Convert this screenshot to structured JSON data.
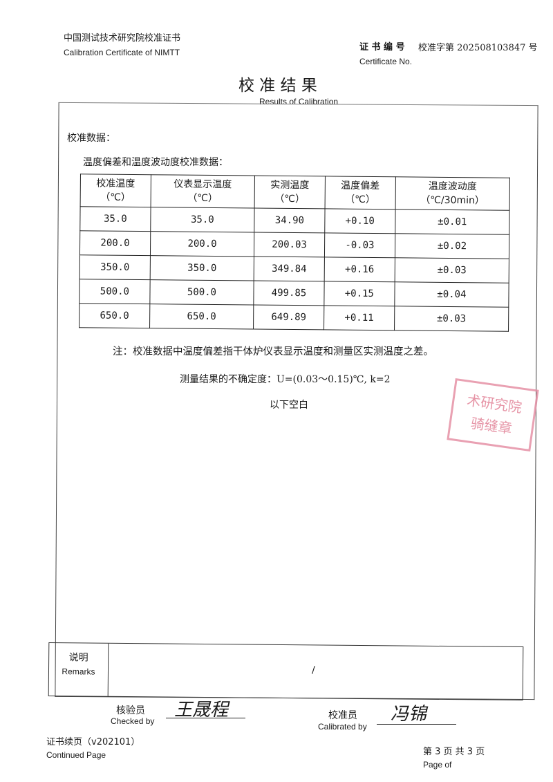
{
  "header": {
    "institute_cn": "中国测试技术研究院校准证书",
    "institute_en": "Calibration Certificate of NIMTT",
    "cert_no_label_cn": "证 书 编 号",
    "cert_no_value": "校准字第 202508103847 号",
    "cert_no_label_en": "Certificate No."
  },
  "title": {
    "cn": "校 准 结 果",
    "en": "Results of Calibration"
  },
  "section": {
    "label": "校准数据：",
    "subtitle": "温度偏差和温度波动度校准数据："
  },
  "table": {
    "columns": [
      {
        "name": "校准温度",
        "unit": "（℃）"
      },
      {
        "name": "仪表显示温度",
        "unit": "（℃）"
      },
      {
        "name": "实测温度",
        "unit": "（℃）"
      },
      {
        "name": "温度偏差",
        "unit": "（℃）"
      },
      {
        "name": "温度波动度",
        "unit": "（℃/30min）"
      }
    ],
    "rows": [
      [
        "35.0",
        "35.0",
        "34.90",
        "+0.10",
        "±0.01"
      ],
      [
        "200.0",
        "200.0",
        "200.03",
        "-0.03",
        "±0.02"
      ],
      [
        "350.0",
        "350.0",
        "349.84",
        "+0.16",
        "±0.03"
      ],
      [
        "500.0",
        "500.0",
        "499.85",
        "+0.15",
        "±0.04"
      ],
      [
        "650.0",
        "650.0",
        "649.89",
        "+0.11",
        "±0.03"
      ]
    ]
  },
  "notes": {
    "note": "注：校准数据中温度偏差指干体炉仪表显示温度和测量区实测温度之差。",
    "uncertainty": "测量结果的不确定度：U=(0.03～0.15)℃, k=2",
    "blank": "以下空白"
  },
  "stamp": {
    "line1": "术研究院",
    "line2": "骑缝章",
    "color": "#e07a90"
  },
  "remarks": {
    "label_cn": "说明",
    "label_en": "Remarks",
    "value": "/"
  },
  "signatures": {
    "checked_cn": "核验员",
    "checked_en": "Checked by",
    "checked_name": "王晟程",
    "calibrated_cn": "校准员",
    "calibrated_en": "Calibrated by",
    "calibrated_name": "冯锦"
  },
  "footer": {
    "continued_cn": "证书续页（v202101）",
    "continued_en": "Continued Page",
    "page_cn": "第 3 页 共 3 页",
    "page_en": "Page of"
  }
}
